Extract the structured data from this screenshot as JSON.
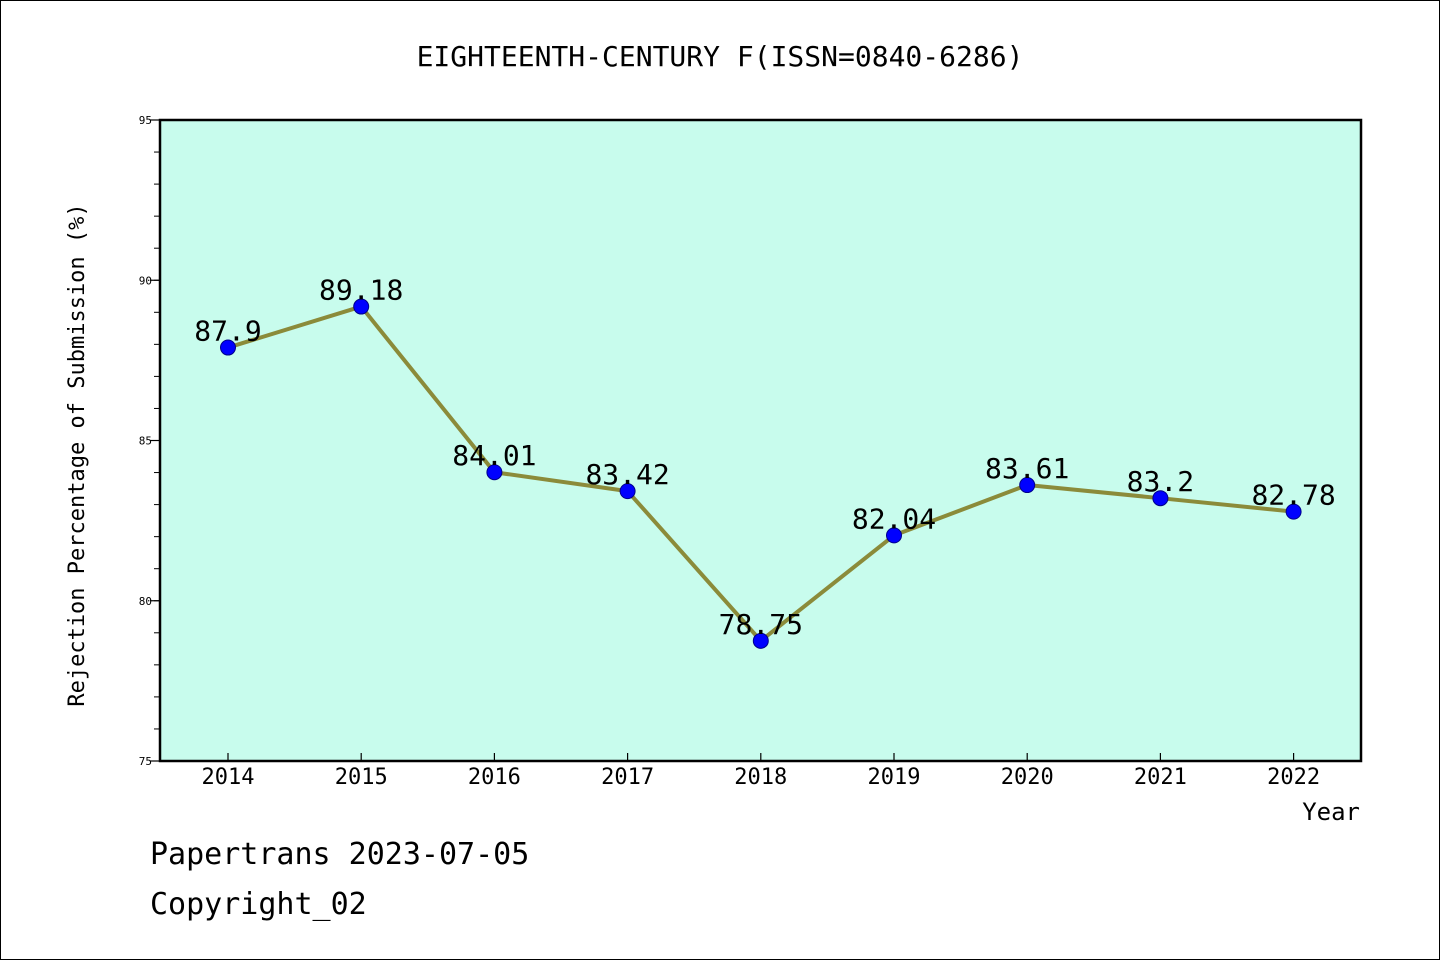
{
  "chart_data": {
    "type": "line",
    "title": "EIGHTEENTH-CENTURY F(ISSN=0840-6286)",
    "xlabel": "Year",
    "ylabel": "Rejection Percentage of Submission (%)",
    "categories": [
      "2014",
      "2015",
      "2016",
      "2017",
      "2018",
      "2019",
      "2020",
      "2021",
      "2022"
    ],
    "series": [
      {
        "values": [
          87.9,
          89.18,
          84.01,
          83.42,
          78.75,
          82.04,
          83.61,
          83.2,
          82.78
        ],
        "labels": [
          "87.9",
          "89.18",
          "84.01",
          "83.42",
          "78.75",
          "82.04",
          "83.61",
          "83.2",
          "82.78"
        ]
      }
    ],
    "ylim": [
      75,
      95
    ],
    "yticks": [
      "75",
      "80",
      "85",
      "90",
      "95"
    ],
    "grid": false,
    "colors": {
      "plot_background": "#c8fced",
      "line": "#8b8b3a",
      "marker": "#0000ff",
      "marker_edge": "#00008b",
      "axis": "#000000"
    }
  },
  "footer": {
    "line1": "Papertrans 2023-07-05",
    "line2": "Copyright_02"
  }
}
